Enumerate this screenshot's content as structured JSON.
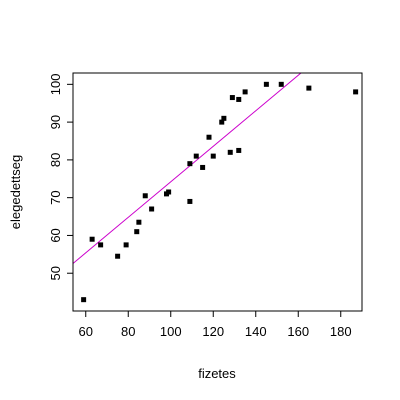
{
  "chart_data": {
    "type": "scatter",
    "title": "",
    "xlabel": "fizetes",
    "ylabel": "elegedettseg",
    "xlim": [
      54,
      190
    ],
    "ylim": [
      40,
      103
    ],
    "grid": false,
    "x_ticks": [
      "60",
      "80",
      "100",
      "120",
      "140",
      "160",
      "180"
    ],
    "x_tick_values": [
      60,
      80,
      100,
      120,
      140,
      160,
      180
    ],
    "y_ticks": [
      "50",
      "60",
      "70",
      "80",
      "90",
      "100"
    ],
    "y_tick_values": [
      50,
      60,
      70,
      80,
      90,
      100
    ],
    "series": [
      {
        "color": "#000000",
        "marker": "square",
        "points": [
          [
            59,
            43
          ],
          [
            63,
            59
          ],
          [
            67,
            57.5
          ],
          [
            75,
            54.5
          ],
          [
            79,
            57.5
          ],
          [
            84,
            61
          ],
          [
            85,
            63.5
          ],
          [
            88,
            70.5
          ],
          [
            91,
            67
          ],
          [
            98,
            71
          ],
          [
            99,
            71.5
          ],
          [
            109,
            69
          ],
          [
            109,
            79
          ],
          [
            112,
            81
          ],
          [
            115,
            78
          ],
          [
            118,
            86
          ],
          [
            120,
            81
          ],
          [
            124,
            90
          ],
          [
            125,
            91
          ],
          [
            128,
            82
          ],
          [
            129,
            96.5
          ],
          [
            132,
            82.5
          ],
          [
            132,
            96
          ],
          [
            135,
            98
          ],
          [
            145,
            100
          ],
          [
            152,
            100
          ],
          [
            165,
            99
          ],
          [
            187,
            98
          ]
        ]
      }
    ],
    "regression_line": {
      "color": "#cc00cc",
      "intercept": 27.2,
      "slope": 0.47
    }
  }
}
